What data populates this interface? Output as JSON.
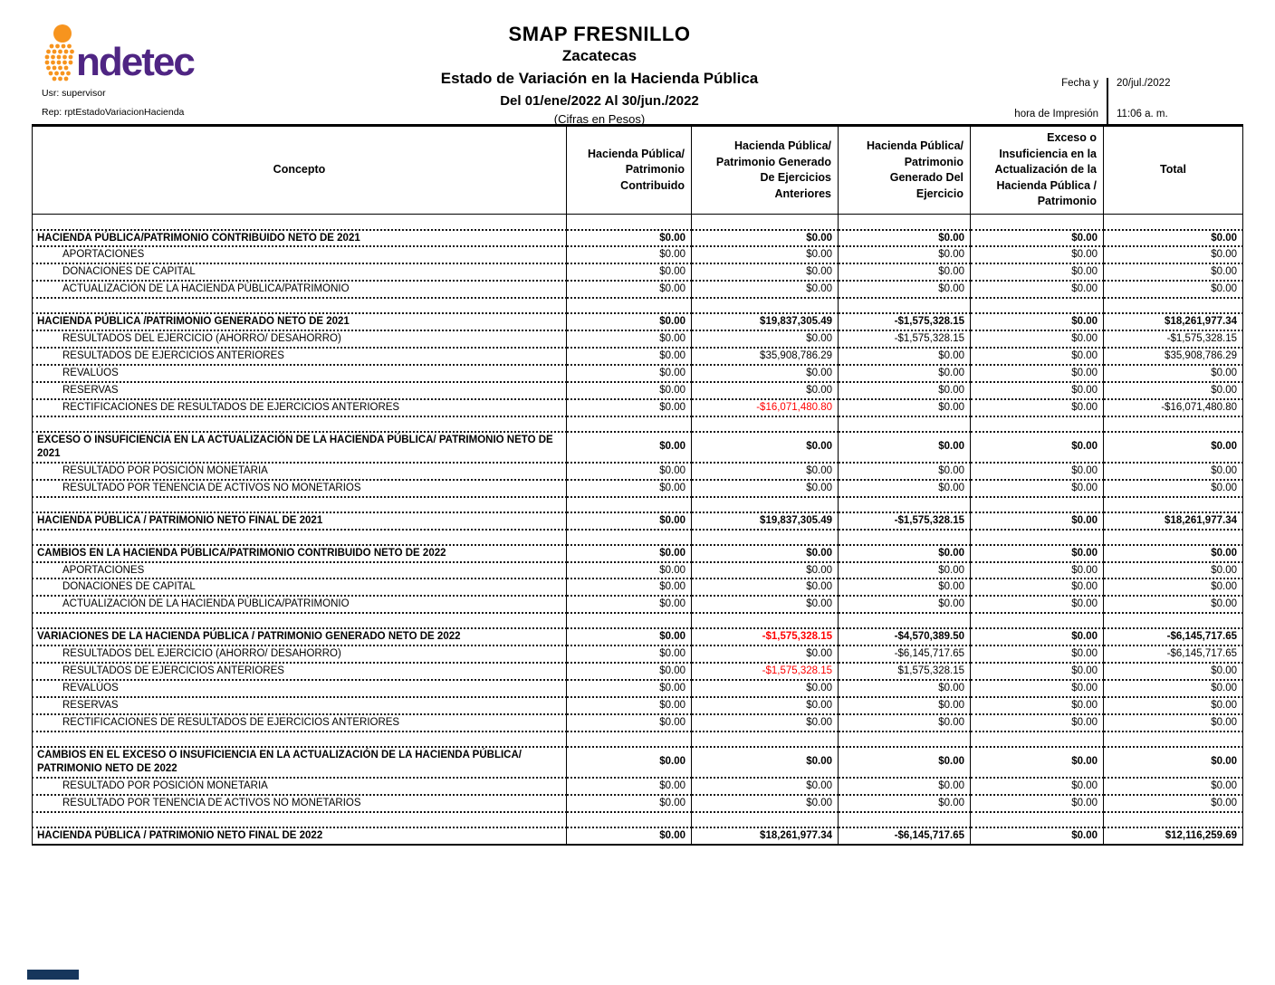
{
  "logo": {
    "brand": "indetec",
    "text_after_mark": "ndetec"
  },
  "meta": {
    "user_line": "Usr: supervisor",
    "report_line": "Rep: rptEstadoVariacionHacienda"
  },
  "title": {
    "line1": "SMAP FRESNILLO",
    "line2": "Zacatecas",
    "line3": "Estado de Variación en la Hacienda Pública",
    "line4": "Del 01/ene/2022 Al 30/jun./2022",
    "line5": "(Cifras en Pesos)"
  },
  "print_info": {
    "label_line1": "Fecha y",
    "label_line2": "hora de Impresión",
    "date": "20/jul./2022",
    "time": "11:06 a. m."
  },
  "table": {
    "headers": [
      "Concepto",
      "Hacienda Pública/\nPatrimonio\nContribuido",
      "Hacienda Pública/\nPatrimonio Generado\nDe Ejercicios\nAnteriores",
      "Hacienda Pública/\nPatrimonio\nGenerado Del\nEjercicio",
      "Exceso o\nInsuficiencia en la\nActualización de la\nHacienda Pública /\nPatrimonio",
      "Total"
    ],
    "rows": [
      {
        "type": "spacer"
      },
      {
        "type": "section",
        "label": "HACIENDA PÚBLICA/PATRIMONIO CONTRIBUIDO NETO DE 2021",
        "values": [
          "$0.00",
          "$0.00",
          "$0.00",
          "$0.00",
          "$0.00"
        ]
      },
      {
        "type": "item",
        "label": "APORTACIONES",
        "values": [
          "$0.00",
          "$0.00",
          "$0.00",
          "$0.00",
          "$0.00"
        ]
      },
      {
        "type": "item",
        "label": "DONACIONES DE CAPITAL",
        "values": [
          "$0.00",
          "$0.00",
          "$0.00",
          "$0.00",
          "$0.00"
        ]
      },
      {
        "type": "item",
        "label": "ACTUALIZACIÓN DE LA HACIENDA PÚBLICA/PATRIMONIO",
        "values": [
          "$0.00",
          "$0.00",
          "$0.00",
          "$0.00",
          "$0.00"
        ]
      },
      {
        "type": "spacer"
      },
      {
        "type": "section",
        "label": "HACIENDA PÚBLICA /PATRIMONIO GENERADO NETO DE 2021",
        "values": [
          "$0.00",
          "$19,837,305.49",
          "-$1,575,328.15",
          "$0.00",
          "$18,261,977.34"
        ]
      },
      {
        "type": "item",
        "label": "RESULTADOS DEL EJERCICIO (AHORRO/ DESAHORRO)",
        "values": [
          "$0.00",
          "$0.00",
          "-$1,575,328.15",
          "$0.00",
          "-$1,575,328.15"
        ]
      },
      {
        "type": "item",
        "label": "RESULTADOS DE EJERCICIOS ANTERIORES",
        "values": [
          "$0.00",
          "$35,908,786.29",
          "$0.00",
          "$0.00",
          "$35,908,786.29"
        ]
      },
      {
        "type": "item",
        "label": "REVALÚOS",
        "values": [
          "$0.00",
          "$0.00",
          "$0.00",
          "$0.00",
          "$0.00"
        ]
      },
      {
        "type": "item",
        "label": "RESERVAS",
        "values": [
          "$0.00",
          "$0.00",
          "$0.00",
          "$0.00",
          "$0.00"
        ]
      },
      {
        "type": "item",
        "label": "RECTIFICACIONES DE RESULTADOS DE EJERCICIOS ANTERIORES",
        "values": [
          "$0.00",
          "-$16,071,480.80",
          "$0.00",
          "$0.00",
          "-$16,071,480.80"
        ],
        "red": [
          1
        ]
      },
      {
        "type": "spacer"
      },
      {
        "type": "section",
        "label": "EXCESO O INSUFICIENCIA EN LA ACTUALIZACIÓN DE LA HACIENDA PÚBLICA/ PATRIMONIO NETO DE 2021",
        "values": [
          "$0.00",
          "$0.00",
          "$0.00",
          "$0.00",
          "$0.00"
        ]
      },
      {
        "type": "item",
        "label": "RESULTADO POR POSICIÓN MONETARIA",
        "values": [
          "$0.00",
          "$0.00",
          "$0.00",
          "$0.00",
          "$0.00"
        ]
      },
      {
        "type": "item",
        "label": "RESULTADO POR TENENCIA DE ACTIVOS NO MONETARIOS",
        "values": [
          "$0.00",
          "$0.00",
          "$0.00",
          "$0.00",
          "$0.00"
        ]
      },
      {
        "type": "spacer"
      },
      {
        "type": "section",
        "label": "HACIENDA PÚBLICA / PATRIMONIO NETO  FINAL DE 2021",
        "values": [
          "$0.00",
          "$19,837,305.49",
          "-$1,575,328.15",
          "$0.00",
          "$18,261,977.34"
        ]
      },
      {
        "type": "spacer"
      },
      {
        "type": "section",
        "label": "CAMBIOS EN LA HACIENDA PÚBLICA/PATRIMONIO CONTRIBUIDO NETO DE 2022",
        "values": [
          "$0.00",
          "$0.00",
          "$0.00",
          "$0.00",
          "$0.00"
        ]
      },
      {
        "type": "item",
        "label": "APORTACIONES",
        "values": [
          "$0.00",
          "$0.00",
          "$0.00",
          "$0.00",
          "$0.00"
        ]
      },
      {
        "type": "item",
        "label": "DONACIONES DE CAPITAL",
        "values": [
          "$0.00",
          "$0.00",
          "$0.00",
          "$0.00",
          "$0.00"
        ]
      },
      {
        "type": "item",
        "label": "ACTUALIZACIÓN DE LA HACIENDA PÚBLICA/PATRIMONIO",
        "values": [
          "$0.00",
          "$0.00",
          "$0.00",
          "$0.00",
          "$0.00"
        ]
      },
      {
        "type": "spacer"
      },
      {
        "type": "section",
        "label": "VARIACIONES DE LA HACIENDA PÚBLICA / PATRIMONIO GENERADO NETO DE 2022",
        "values": [
          "$0.00",
          "-$1,575,328.15",
          "-$4,570,389.50",
          "$0.00",
          "-$6,145,717.65"
        ],
        "red": [
          1
        ]
      },
      {
        "type": "item",
        "label": "RESULTADOS DEL EJERCICIO (AHORRO/ DESAHORRO)",
        "values": [
          "$0.00",
          "$0.00",
          "-$6,145,717.65",
          "$0.00",
          "-$6,145,717.65"
        ]
      },
      {
        "type": "item",
        "label": "RESULTADOS DE EJERCICIOS ANTERIORES",
        "values": [
          "$0.00",
          "-$1,575,328.15",
          "$1,575,328.15",
          "$0.00",
          "$0.00"
        ],
        "red": [
          1
        ]
      },
      {
        "type": "item",
        "label": "REVALÚOS",
        "values": [
          "$0.00",
          "$0.00",
          "$0.00",
          "$0.00",
          "$0.00"
        ]
      },
      {
        "type": "item",
        "label": "RESERVAS",
        "values": [
          "$0.00",
          "$0.00",
          "$0.00",
          "$0.00",
          "$0.00"
        ]
      },
      {
        "type": "item",
        "label": "RECTIFICACIONES DE RESULTADOS DE EJERCICIOS ANTERIORES",
        "values": [
          "$0.00",
          "$0.00",
          "$0.00",
          "$0.00",
          "$0.00"
        ]
      },
      {
        "type": "spacer"
      },
      {
        "type": "section",
        "label": "CAMBIOS EN EL EXCESO O INSUFICIENCIA EN LA ACTUALIZACIÓN DE LA HACIENDA PÚBLICA/ PATRIMONIO NETO DE 2022",
        "values": [
          "$0.00",
          "$0.00",
          "$0.00",
          "$0.00",
          "$0.00"
        ]
      },
      {
        "type": "item",
        "label": "RESULTADO POR POSICIÓN MONETARIA",
        "values": [
          "$0.00",
          "$0.00",
          "$0.00",
          "$0.00",
          "$0.00"
        ]
      },
      {
        "type": "item",
        "label": "RESULTADO POR TENENCIA DE ACTIVOS NO MONETARIOS",
        "values": [
          "$0.00",
          "$0.00",
          "$0.00",
          "$0.00",
          "$0.00"
        ]
      },
      {
        "type": "spacer"
      },
      {
        "type": "section",
        "label": "HACIENDA PÚBLICA / PATRIMONIO NETO FINAL DE 2022",
        "values": [
          "$0.00",
          "$18,261,977.34",
          "-$6,145,717.65",
          "$0.00",
          "$12,116,259.69"
        ]
      }
    ]
  },
  "colors": {
    "brand_purple": "#4f2583",
    "brand_orange": "#f7941e",
    "negative_red": "#ff0000",
    "footer_bar": "#16365c"
  }
}
